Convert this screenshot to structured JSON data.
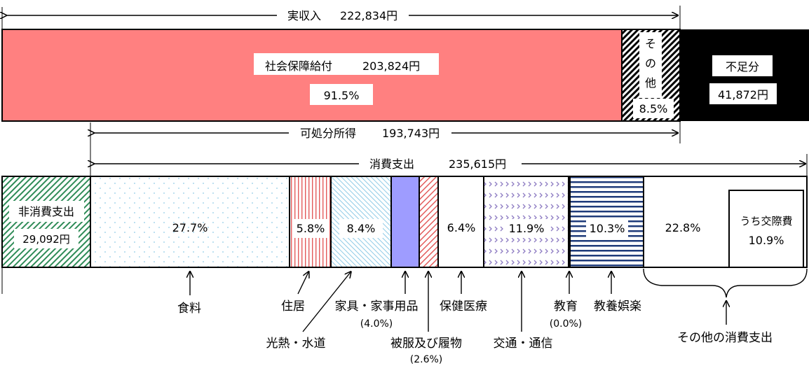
{
  "chart_data": {
    "type": "bar",
    "income": {
      "actual_income": "実収入",
      "actual_income_value": "222,834円",
      "social_security_label": "社会保障給付",
      "social_security_value": "203,824円",
      "social_security_pct": "91.5%",
      "other_label_1": "そ",
      "other_label_2": "の",
      "other_label_3": "他",
      "other_pct": "8.5%",
      "shortfall_label": "不足分",
      "shortfall_value": "41,872円",
      "disposable_label": "可処分所得",
      "disposable_value": "193,743円"
    },
    "expenditure": {
      "consumption_label": "消費支出",
      "consumption_value": "235,615円",
      "nonconsumption_label": "非消費支出",
      "nonconsumption_value": "29,092円",
      "categories": [
        {
          "name": "食料",
          "pct": "27.7%",
          "value": 27.7
        },
        {
          "name": "住居",
          "pct": "5.8%",
          "value": 5.8
        },
        {
          "name": "光熱・水道",
          "pct": "8.4%",
          "value": 8.4
        },
        {
          "name": "家具・家事用品",
          "pct": "(4.0%)",
          "value": 4.0
        },
        {
          "name": "被服及び履物",
          "pct": "(2.6%)",
          "value": 2.6
        },
        {
          "name": "保健医療",
          "pct": "6.4%",
          "value": 6.4
        },
        {
          "name": "交通・通信",
          "pct": "11.9%",
          "value": 11.9
        },
        {
          "name": "教育",
          "pct": "(0.0%)",
          "value": 0.0
        },
        {
          "name": "教養娯楽",
          "pct": "10.3%",
          "value": 10.3
        },
        {
          "name": "その他の消費支出",
          "pct": "22.8%",
          "value": 22.8
        }
      ],
      "social_expense_label": "うち交際費",
      "social_expense_pct": "10.9%"
    }
  }
}
